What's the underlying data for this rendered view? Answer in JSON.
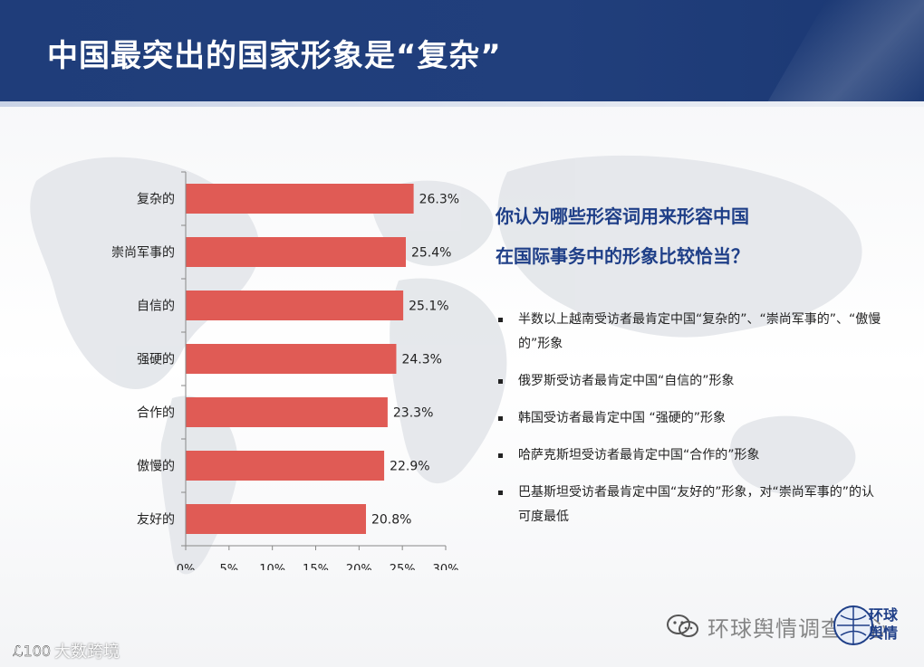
{
  "header": {
    "title": "中国最突出的国家形象是“复杂”"
  },
  "chart_data": {
    "type": "bar",
    "orientation": "horizontal",
    "categories": [
      "复杂的",
      "崇尚军事的",
      "自信的",
      "强硬的",
      "合作的",
      "傲慢的",
      "友好的"
    ],
    "values": [
      26.3,
      25.4,
      25.1,
      24.3,
      23.3,
      22.9,
      20.8
    ],
    "value_labels": [
      "26.3%",
      "25.4%",
      "25.1%",
      "24.3%",
      "23.3%",
      "22.9%",
      "20.8%"
    ],
    "x_ticks": [
      0,
      5,
      10,
      15,
      20,
      25,
      30
    ],
    "x_tick_labels": [
      "0%",
      "5%",
      "10%",
      "15%",
      "20%",
      "25%",
      "30%"
    ],
    "xlim": [
      0,
      30
    ],
    "bar_color": "#e05b55",
    "grid": false
  },
  "question": {
    "lines": [
      "你认为哪些形容词用来形容中国",
      "在国际事务中的形象比较恰当？"
    ],
    "color": "#1f3f88"
  },
  "bullets": [
    "半数以上越南受访者最肯定中国“复杂的”、“崇尚军事的”、“傲慢的”形象",
    "俄罗斯受访者最肯定中国“自信的”形象",
    "韩国受访者最肯定中国 “强硬的”形象",
    "哈萨克斯坦受访者最肯定中国“合作的”形象",
    "巴基斯坦受访者最肯定中国“友好的”形象，对“崇尚军事的”的认可度最低"
  ],
  "watermarks": {
    "right_text": "环球舆情调查中心",
    "logo_text": "环球舆情",
    "left_text": "大数跨境",
    "left_mark": "ℒ100"
  },
  "colors": {
    "header_bg": "#1f3d7a",
    "accent": "#1f3f88",
    "bar": "#e05b55"
  }
}
